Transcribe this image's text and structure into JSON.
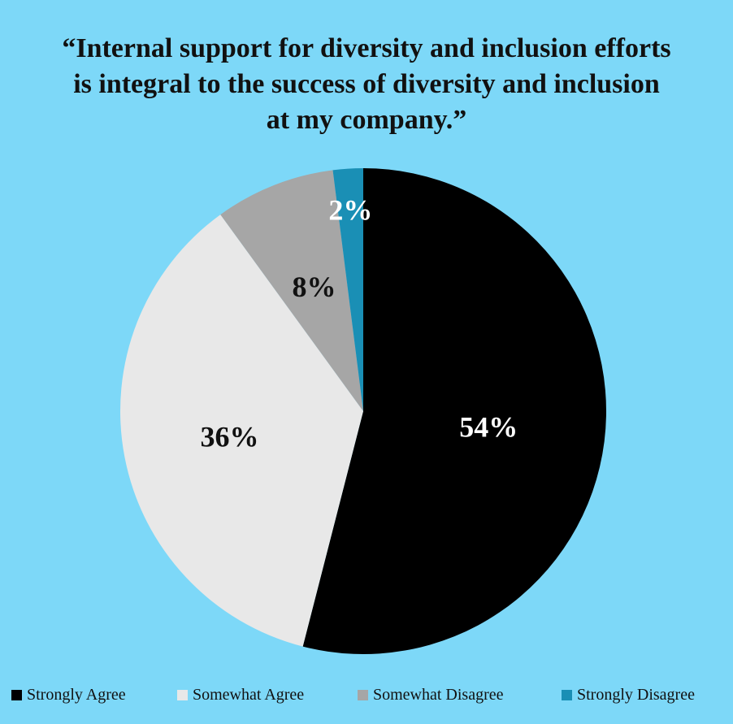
{
  "chart_data": {
    "type": "pie",
    "title_lines": [
      "“Internal support for diversity and inclusion efforts",
      "is integral to the success of diversity and inclusion",
      "at my company.”"
    ],
    "categories": [
      "Strongly Agree",
      "Somewhat Agree",
      "Somewhat Disagree",
      "Strongly Disagree"
    ],
    "values": [
      54,
      36,
      8,
      2
    ],
    "labels": [
      "54%",
      "36%",
      "8%",
      "2%"
    ],
    "colors": [
      "#000000",
      "#E8E8E8",
      "#A6A6A6",
      "#1A8FB5"
    ],
    "label_colors": [
      "#FFFFFF",
      "#111111",
      "#111111",
      "#FFFFFF"
    ],
    "start": "12 o'clock",
    "direction": "clockwise",
    "legend_position": "bottom"
  }
}
